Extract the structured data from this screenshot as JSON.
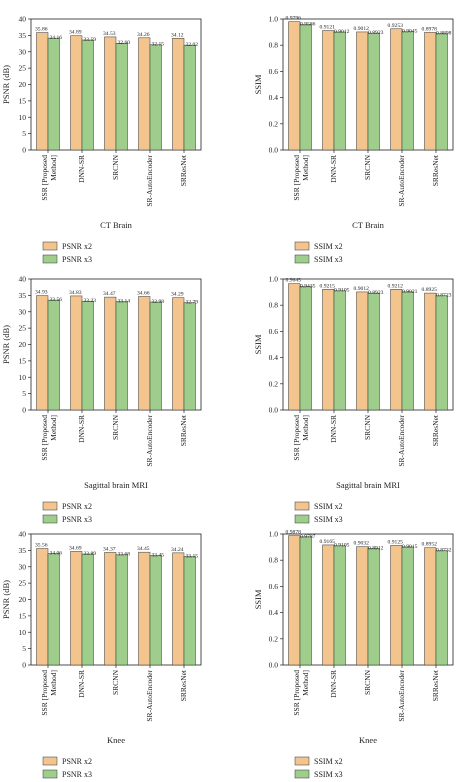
{
  "colors": {
    "x2": "#f3c48e",
    "x3": "#9fce8c",
    "bar_stroke": "#333333",
    "axis": "#222222"
  },
  "chart_data": [
    {
      "type": "bar",
      "metric": "psnr",
      "categories": [
        "SSR [Proposed Method]",
        "DNN-SR",
        "SRCNN",
        "SR-AutoEncoder",
        "SRResNet"
      ],
      "series": [
        {
          "name": "PSNR x2",
          "values": [
            35.86,
            34.89,
            34.53,
            34.26,
            34.12
          ],
          "labels": [
            "35.86",
            "34.89",
            "34.53",
            "34.26",
            "34.12"
          ]
        },
        {
          "name": "PSNR x3",
          "values": [
            34.16,
            33.59,
            32.6,
            32.15,
            32.02
          ],
          "labels": [
            "34.16",
            "33.59",
            "32.60",
            "32.15",
            "32.02"
          ]
        }
      ],
      "xlabel": "CT Brain",
      "ylabel": "PSNR (dB)",
      "ylim": [
        0,
        40
      ],
      "yticks": [
        0,
        5,
        10,
        15,
        20,
        25,
        30,
        35,
        40
      ],
      "ytick_labels": [
        "0",
        "5",
        "10",
        "15",
        "20",
        "25",
        "30",
        "35",
        "40"
      ],
      "grid": false,
      "legend": "below"
    },
    {
      "type": "bar",
      "metric": "ssim",
      "categories": [
        "SSR [Proposed Method]",
        "DNN-SR",
        "SRCNN",
        "SR-AutoEncoder",
        "SRResNet"
      ],
      "series": [
        {
          "name": "SSIM x2",
          "values": [
            0.9796,
            0.9121,
            0.9012,
            0.9253,
            0.8978
          ],
          "labels": [
            "0.9796",
            "0.9121",
            "0.9012",
            "0.9253",
            "0.8978"
          ]
        },
        {
          "name": "SSIM x3",
          "values": [
            0.9586,
            0.9012,
            0.8923,
            0.9045,
            0.8898
          ],
          "labels": [
            "0.9586",
            "0.9012",
            "0.8923",
            "0.9045",
            "0.8898"
          ]
        }
      ],
      "xlabel": "CT Brain",
      "ylabel": "SSIM",
      "ylim": [
        0,
        1.0
      ],
      "yticks": [
        0,
        0.2,
        0.4,
        0.6,
        0.8,
        1.0
      ],
      "ytick_labels": [
        "0.0",
        "0.2",
        "0.4",
        "0.6",
        "0.8",
        "1.0"
      ],
      "grid": false,
      "legend": "below"
    },
    {
      "type": "bar",
      "metric": "psnr",
      "categories": [
        "SSR [Proposed Method]",
        "DNN-SR",
        "SRCNN",
        "SR-AutoEncoder",
        "SRResNet"
      ],
      "series": [
        {
          "name": "PSNR x2",
          "values": [
            34.93,
            34.83,
            34.47,
            34.66,
            34.29
          ],
          "labels": [
            "34.93",
            "34.83",
            "34.47",
            "34.66",
            "34.29"
          ]
        },
        {
          "name": "PSNR x3",
          "values": [
            33.56,
            33.23,
            33.14,
            32.98,
            32.79
          ],
          "labels": [
            "33.56",
            "33.23",
            "33.14",
            "32.98",
            "32.79"
          ]
        }
      ],
      "xlabel": "Sagittal brain MRI",
      "ylabel": "PSNR (dB)",
      "ylim": [
        0,
        40
      ],
      "yticks": [
        0,
        5,
        10,
        15,
        20,
        25,
        30,
        35,
        40
      ],
      "ytick_labels": [
        "0",
        "5",
        "10",
        "15",
        "20",
        "25",
        "30",
        "35",
        "40"
      ],
      "grid": false,
      "legend": "below"
    },
    {
      "type": "bar",
      "metric": "ssim",
      "categories": [
        "SSR [Proposed Method]",
        "DNN-SR",
        "SRCNN",
        "SR-AutoEncoder",
        "SRResNet"
      ],
      "series": [
        {
          "name": "SSIM x2",
          "values": [
            0.9645,
            0.9215,
            0.9012,
            0.9212,
            0.8925
          ],
          "labels": [
            "0.9645",
            "0.9215",
            "0.9012",
            "0.9212",
            "0.8925"
          ]
        },
        {
          "name": "SSIM x3",
          "values": [
            0.9435,
            0.9105,
            0.8923,
            0.9021,
            0.8723
          ],
          "labels": [
            "0.9435",
            "0.9105",
            "0.8923",
            "0.9021",
            "0.8723"
          ]
        }
      ],
      "xlabel": "Sagittal brain MRI",
      "ylabel": "SSIM",
      "ylim": [
        0,
        1.0
      ],
      "yticks": [
        0,
        0.2,
        0.4,
        0.6,
        0.8,
        1.0
      ],
      "ytick_labels": [
        "0.0",
        "0.2",
        "0.4",
        "0.6",
        "0.8",
        "1.0"
      ],
      "grid": false,
      "legend": "below"
    },
    {
      "type": "bar",
      "metric": "psnr",
      "categories": [
        "SSR [Proposed Method]",
        "DNN-SR",
        "SRCNN",
        "SR-AutoEncoder",
        "SRResNet"
      ],
      "series": [
        {
          "name": "PSNR x2",
          "values": [
            35.56,
            34.69,
            34.37,
            34.45,
            34.24
          ],
          "labels": [
            "35.56",
            "34.69",
            "34.37",
            "34.45",
            "34.24"
          ]
        },
        {
          "name": "PSNR x3",
          "values": [
            34.06,
            33.89,
            33.68,
            33.45,
            33.15
          ],
          "labels": [
            "34.06",
            "33.89",
            "33.68",
            "33.45",
            "33.15"
          ]
        }
      ],
      "xlabel": "Knee",
      "ylabel": "PSNR (dB)",
      "ylim": [
        0,
        40
      ],
      "yticks": [
        0,
        5,
        10,
        15,
        20,
        25,
        30,
        35,
        40
      ],
      "ytick_labels": [
        "0",
        "5",
        "10",
        "15",
        "20",
        "25",
        "30",
        "35",
        "40"
      ],
      "grid": false,
      "legend": "below"
    },
    {
      "type": "bar",
      "metric": "ssim",
      "categories": [
        "SSR [Proposed Method]",
        "DNN-SR",
        "SRCNN",
        "SR-AutoEncoder",
        "SRResNet"
      ],
      "series": [
        {
          "name": "SSIM x2",
          "values": [
            0.9878,
            0.9165,
            0.9032,
            0.9125,
            0.8952
          ],
          "labels": [
            "0.9878",
            "0.9165",
            "0.9032",
            "0.9125",
            "0.8952"
          ]
        },
        {
          "name": "SSIM x3",
          "values": [
            0.9787,
            0.9105,
            0.8912,
            0.9015,
            0.8732
          ],
          "labels": [
            "0.9787",
            "0.9105",
            "0.8912",
            "0.9015",
            "0.8732"
          ]
        }
      ],
      "xlabel": "Knee",
      "ylabel": "SSIM",
      "ylim": [
        0,
        1.0
      ],
      "yticks": [
        0,
        0.2,
        0.4,
        0.6,
        0.8,
        1.0
      ],
      "ytick_labels": [
        "0.0",
        "0.2",
        "0.4",
        "0.6",
        "0.8",
        "1.0"
      ],
      "grid": false,
      "legend": "below"
    }
  ]
}
